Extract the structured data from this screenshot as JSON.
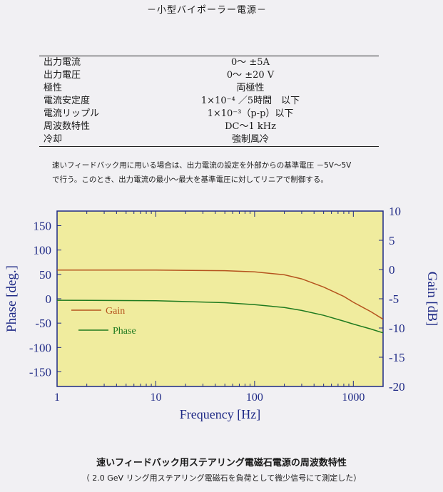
{
  "page_title": "－小型バイポーラー電源－",
  "specs": [
    {
      "label": "出力電流",
      "value": "0～ ±5A"
    },
    {
      "label": "出力電圧",
      "value": "0～ ±20 V"
    },
    {
      "label": "極性",
      "value": "両極性"
    },
    {
      "label": "電流安定度",
      "value": "1×10⁻⁴ ／5時間　以下"
    },
    {
      "label": "電流リップル",
      "value": "1×10⁻³（p-p）以下"
    },
    {
      "label": "周波数特性",
      "value": "DC～1 kHz"
    },
    {
      "label": "冷却",
      "value": "強制風冷"
    }
  ],
  "note": {
    "line1": "速いフィードバック用に用いる場合は、出力電流の設定を外部からの基準電圧 －5V～5V",
    "line2": "で行う。このとき、出力電流の最小～最大を基準電圧に対してリニアで制御する。"
  },
  "colors": {
    "plot_bg": "#f0ec9e",
    "axis": "#1f2a86",
    "gain": "#b5531e",
    "phase": "#1f7a1f"
  },
  "chart_data": {
    "type": "line",
    "xlabel": "Frequency [Hz]",
    "ylabel_left": "Phase [deg.]",
    "ylabel_right": "Gain [dB]",
    "x_scale": "log",
    "xlim": [
      1,
      2000
    ],
    "ylim_left": [
      -180,
      180
    ],
    "ylim_right": [
      -20,
      10
    ],
    "x_ticks": [
      "1",
      "10",
      "100",
      "1000"
    ],
    "y_ticks_left": [
      "150",
      "100",
      "50",
      "0",
      "-50",
      "-100",
      "-150"
    ],
    "y_ticks_right": [
      "10",
      "5",
      "0",
      "-5",
      "-10",
      "-15",
      "-20"
    ],
    "legend_position": "left",
    "series": [
      {
        "name": "Gain",
        "axis": "right",
        "x": [
          1,
          10,
          50,
          100,
          200,
          300,
          500,
          800,
          1000,
          1500,
          2000
        ],
        "y": [
          -0.1,
          -0.1,
          -0.2,
          -0.4,
          -0.9,
          -1.6,
          -3.0,
          -4.6,
          -5.6,
          -7.2,
          -8.5
        ]
      },
      {
        "name": "Phase",
        "axis": "left",
        "x": [
          1,
          10,
          50,
          100,
          200,
          300,
          500,
          800,
          1000,
          1500,
          2000
        ],
        "y": [
          -3,
          -4,
          -8,
          -12,
          -18,
          -24,
          -34,
          -46,
          -52,
          -62,
          -70
        ]
      }
    ]
  },
  "caption": {
    "main": "速いフィードバック用ステアリング電磁石電源の周波数特性",
    "sub": "（ 2.0 GeV リング用ステアリング電磁石を負荷として微少信号にて測定した）"
  }
}
